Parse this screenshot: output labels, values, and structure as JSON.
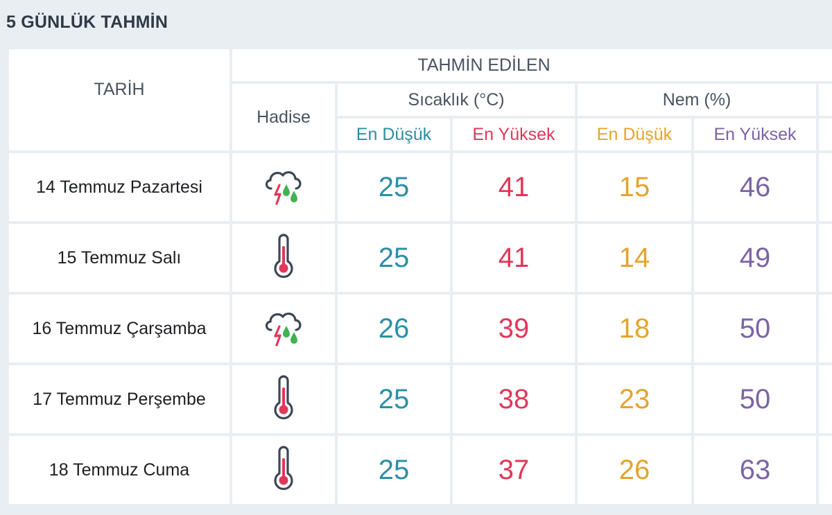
{
  "title": "5 GÜNLÜK TAHMİN",
  "headers": {
    "tarih": "TARİH",
    "tahmin_edilen": "TAHMİN EDİLEN",
    "hadise": "Hadise",
    "sicaklik": "Sıcaklık (°C)",
    "nem": "Nem (%)",
    "en_dusuk": "En Düşük",
    "en_yuksek": "En Yüksek"
  },
  "colors": {
    "sicaklik_dusuk": "#2b8fa6",
    "sicaklik_yuksek": "#e0385a",
    "nem_dusuk": "#e5a42b",
    "nem_yuksek": "#7b63a7"
  },
  "rows": [
    {
      "date": "14 Temmuz Pazartesi",
      "icon": "thunderstorm-rain-icon",
      "temp_min": "25",
      "temp_max": "41",
      "hum_min": "15",
      "hum_max": "46"
    },
    {
      "date": "15 Temmuz Salı",
      "icon": "thermometer-hot-icon",
      "temp_min": "25",
      "temp_max": "41",
      "hum_min": "14",
      "hum_max": "49"
    },
    {
      "date": "16 Temmuz Çarşamba",
      "icon": "thunderstorm-rain-icon",
      "temp_min": "26",
      "temp_max": "39",
      "hum_min": "18",
      "hum_max": "50"
    },
    {
      "date": "17 Temmuz Perşembe",
      "icon": "thermometer-hot-icon",
      "temp_min": "25",
      "temp_max": "38",
      "hum_min": "23",
      "hum_max": "50"
    },
    {
      "date": "18 Temmuz Cuma",
      "icon": "thermometer-hot-icon",
      "temp_min": "25",
      "temp_max": "37",
      "hum_min": "26",
      "hum_max": "63"
    }
  ]
}
